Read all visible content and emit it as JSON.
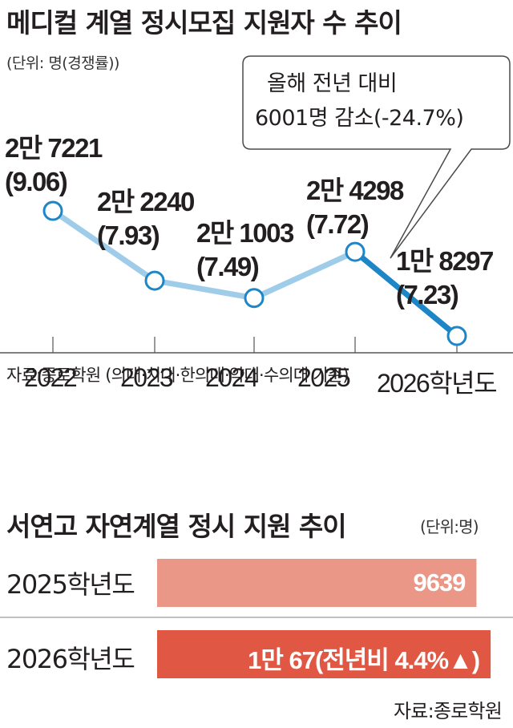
{
  "charts": {
    "line": {
      "title": "메디컬 계열 정시모집 지원자 수 추이",
      "unit_note": "(단위: 명(경쟁률))",
      "callout_line1": "올해 전년 대비",
      "callout_line2": "6001명 감소(-24.7%)",
      "source": "자료:종로학원 (의대·치대·한의대·약대·수의대 기준)",
      "colors": {
        "line_main": "#9fcde9",
        "line_drop": "#1e86c6",
        "point_fill": "#ffffff",
        "axis": "#555555"
      }
    },
    "bar": {
      "title": "서연고 자연계열 정시 지원 추이",
      "unit_note": "(단위:명)",
      "source": "자료:종로학원",
      "colors": {
        "2025": "#eb9787",
        "2026": "#e05844"
      }
    }
  },
  "chart_data": [
    {
      "type": "line",
      "title": "메디컬 계열 정시모집 지원자 수 추이",
      "xlabel": "",
      "ylabel": "",
      "categories": [
        "2022",
        "2023",
        "2024",
        "2025",
        "2026학년도"
      ],
      "series": [
        {
          "values": [
            27221,
            22240,
            21003,
            24298,
            18297
          ],
          "labels": [
            "2만 7221",
            "2만 2240",
            "2만 1003",
            "2만 4298",
            "1만 8297"
          ],
          "competition_ratio": [
            9.06,
            7.93,
            7.49,
            7.72,
            7.23
          ],
          "ratio_labels": [
            "(9.06)",
            "(7.93)",
            "(7.49)",
            "(7.72)",
            "(7.23)"
          ]
        }
      ],
      "ylim": [
        17000,
        28500
      ],
      "grid": false
    },
    {
      "type": "bar",
      "orientation": "horizontal",
      "title": "서연고 자연계열 정시 지원 추이",
      "categories": [
        "2025학년도",
        "2026학년도"
      ],
      "values": [
        9639,
        10067
      ],
      "value_labels": [
        "9639",
        "1만 67(전년비 4.4%▲)"
      ],
      "xlim": [
        0,
        10500
      ],
      "grid": false
    }
  ]
}
